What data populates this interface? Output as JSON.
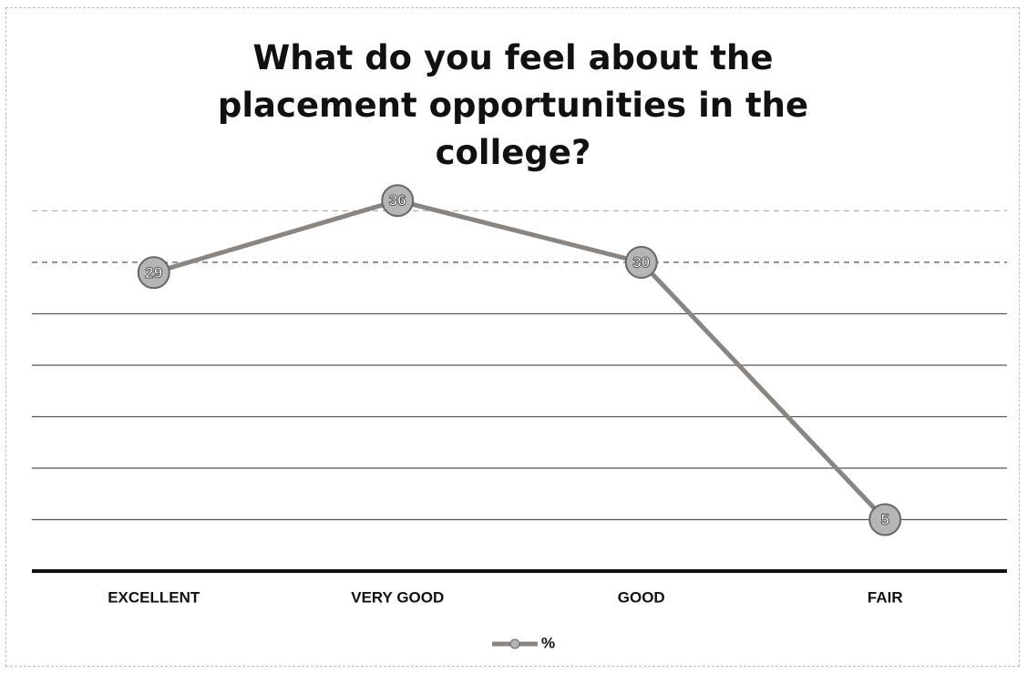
{
  "chart_data": {
    "type": "line",
    "title": "What do you feel about the placement opportunities in the college?",
    "categories": [
      "EXCELLENT",
      "VERY GOOD",
      "GOOD",
      "FAIR"
    ],
    "series": [
      {
        "name": "%",
        "color": "#8a8580",
        "marker_color": "#b5b5b5",
        "values": [
          29,
          36,
          30,
          5
        ]
      }
    ],
    "ylim": [
      0,
      40
    ],
    "yticks": [
      0,
      5,
      10,
      15,
      20,
      25,
      30,
      35
    ],
    "grid": true,
    "legend": "bottom"
  }
}
